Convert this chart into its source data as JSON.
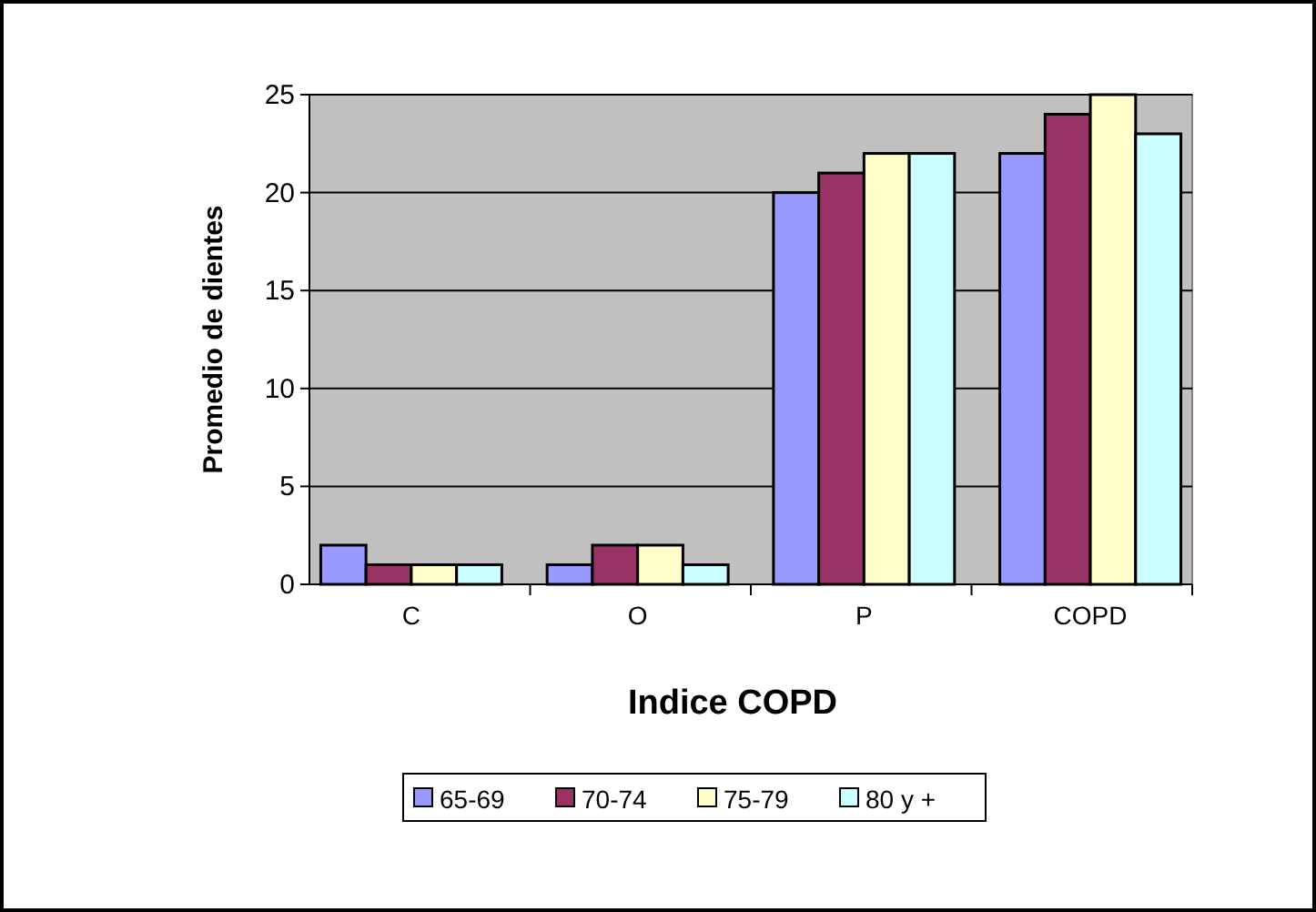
{
  "chart_data": {
    "type": "bar",
    "xlabel": "Indice COPD",
    "ylabel": "Promedio de dientes",
    "categories": [
      "C",
      "O",
      "P",
      "COPD"
    ],
    "series": [
      {
        "name": "65-69",
        "color": "#9999ff",
        "values": [
          2,
          1,
          20,
          22
        ]
      },
      {
        "name": "70-74",
        "color": "#993366",
        "values": [
          1,
          2,
          21,
          24
        ]
      },
      {
        "name": "75-79",
        "color": "#ffffcc",
        "values": [
          1,
          2,
          22,
          25
        ]
      },
      {
        "name": "80 y +",
        "color": "#ccffff",
        "values": [
          1,
          1,
          22,
          23
        ]
      }
    ],
    "ylim": [
      0,
      25
    ],
    "yticks": [
      0,
      5,
      10,
      15,
      20,
      25
    ],
    "grid": "y",
    "legend": "bottom"
  }
}
